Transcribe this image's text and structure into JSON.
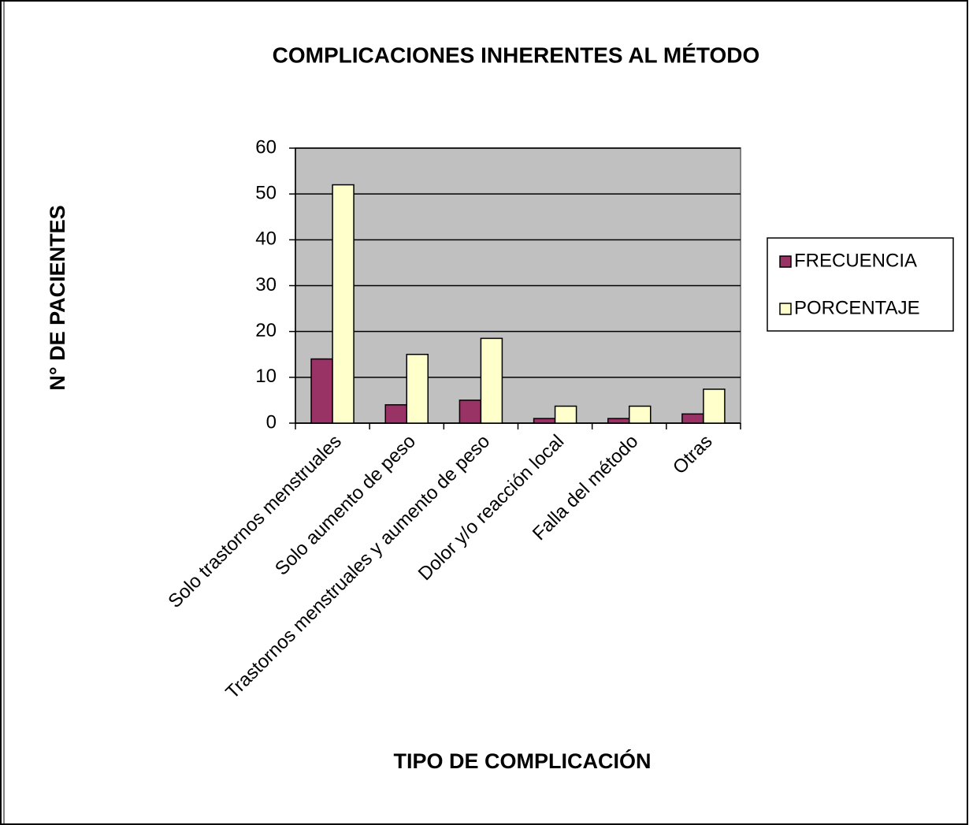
{
  "chart_data": {
    "type": "bar",
    "title": "COMPLICACIONES INHERENTES AL MÉTODO",
    "x_label": "TIPO DE COMPLICACIÓN",
    "y_label": "N° DE PACIENTES",
    "categories": [
      "Solo trastornos menstruales",
      "Solo aumento de peso",
      "Trastornos menstruales y aumento de peso",
      "Dolor y/o reacción local",
      "Falla del método",
      "Otras"
    ],
    "series": [
      {
        "name": "FRECUENCIA",
        "color": "#993366",
        "values": [
          14,
          4,
          5,
          1,
          1,
          2
        ]
      },
      {
        "name": "PORCENTAJE",
        "color": "#ffffcc",
        "values": [
          52,
          15,
          18.5,
          3.7,
          3.7,
          7.4
        ]
      }
    ],
    "ylim": [
      0,
      60
    ],
    "yticks": [
      0,
      10,
      20,
      30,
      40,
      50,
      60
    ],
    "grid": true,
    "plot_background": "#c0c0c0",
    "legend": "right"
  }
}
